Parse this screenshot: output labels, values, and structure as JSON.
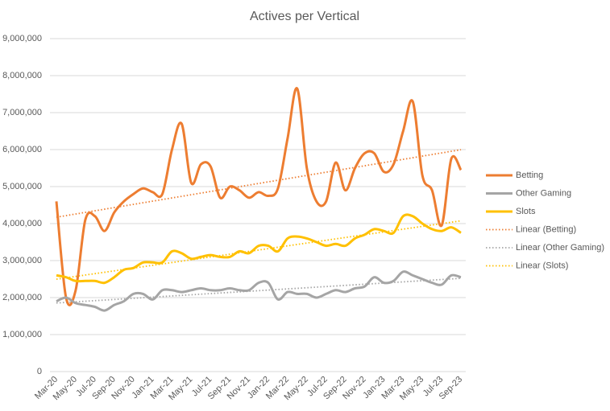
{
  "chart_data": {
    "type": "line",
    "title": "Actives per Vertical",
    "categories": [
      "Mar-20",
      null,
      "May-20",
      null,
      "Jul-20",
      null,
      "Sep-20",
      null,
      "Nov-20",
      null,
      "Jan-21",
      null,
      "Mar-21",
      null,
      "May-21",
      null,
      "Jul-21",
      null,
      "Sep-21",
      null,
      "Nov-21",
      null,
      "Jan-22",
      null,
      "Mar-22",
      null,
      "May-22",
      null,
      "Jul-22",
      null,
      "Sep-22",
      null,
      "Nov-22",
      null,
      "Jan-23",
      null,
      "Mar-23",
      null,
      "May-23",
      null,
      "Jul-23",
      null,
      "Sep-23"
    ],
    "series": [
      {
        "name": "Betting",
        "color": "#ed7d31",
        "values": [
          4600000,
          2000000,
          2200000,
          4100000,
          4200000,
          3800000,
          4300000,
          4600000,
          4800000,
          4950000,
          4850000,
          4800000,
          6000000,
          6700000,
          5100000,
          5600000,
          5550000,
          4700000,
          5000000,
          4900000,
          4700000,
          4850000,
          4750000,
          4950000,
          6300000,
          7650000,
          5500000,
          4600000,
          4600000,
          5650000,
          4900000,
          5500000,
          5900000,
          5900000,
          5400000,
          5600000,
          6500000,
          7300000,
          5300000,
          4900000,
          3950000,
          5750000,
          5450000
        ]
      },
      {
        "name": "Other Gaming",
        "color": "#a5a5a5",
        "values": [
          1900000,
          2000000,
          1850000,
          1800000,
          1750000,
          1650000,
          1800000,
          1900000,
          2100000,
          2100000,
          1950000,
          2200000,
          2200000,
          2150000,
          2200000,
          2250000,
          2200000,
          2200000,
          2250000,
          2200000,
          2200000,
          2400000,
          2400000,
          1950000,
          2150000,
          2100000,
          2100000,
          2000000,
          2100000,
          2200000,
          2150000,
          2250000,
          2300000,
          2550000,
          2400000,
          2450000,
          2700000,
          2600000,
          2500000,
          2400000,
          2350000,
          2600000,
          2550000
        ]
      },
      {
        "name": "Slots",
        "color": "#ffc000",
        "values": [
          2600000,
          2550000,
          2450000,
          2450000,
          2450000,
          2400000,
          2550000,
          2750000,
          2800000,
          2950000,
          2950000,
          2950000,
          3250000,
          3200000,
          3050000,
          3100000,
          3150000,
          3100000,
          3100000,
          3250000,
          3200000,
          3400000,
          3400000,
          3250000,
          3600000,
          3650000,
          3600000,
          3500000,
          3400000,
          3450000,
          3400000,
          3600000,
          3700000,
          3850000,
          3800000,
          3750000,
          4200000,
          4200000,
          4000000,
          3850000,
          3800000,
          3900000,
          3750000
        ]
      }
    ],
    "trendlines": [
      {
        "name": "Linear (Betting)",
        "series": 0,
        "color": "#ed7d31"
      },
      {
        "name": "Linear (Other Gaming)",
        "series": 1,
        "color": "#a5a5a5"
      },
      {
        "name": "Linear (Slots)",
        "series": 2,
        "color": "#ffc000"
      }
    ],
    "ylim": [
      0,
      9000000
    ],
    "yticks": [
      0,
      {
        "value": 1000000,
        "label": "1,000,000"
      },
      {
        "value": 2000000,
        "label": "2,000,000"
      },
      {
        "value": 3000000,
        "label": "3,000,000"
      },
      {
        "value": 4000000,
        "label": "4,000,000"
      },
      {
        "value": 5000000,
        "label": "5,000,000"
      },
      {
        "value": 6000000,
        "label": "6,000,000"
      },
      {
        "value": 7000000,
        "label": "7,000,000"
      },
      {
        "value": 8000000,
        "label": "8,000,000"
      },
      {
        "value": 9000000,
        "label": "9,000,000"
      }
    ],
    "grid": true,
    "legend": "right"
  }
}
